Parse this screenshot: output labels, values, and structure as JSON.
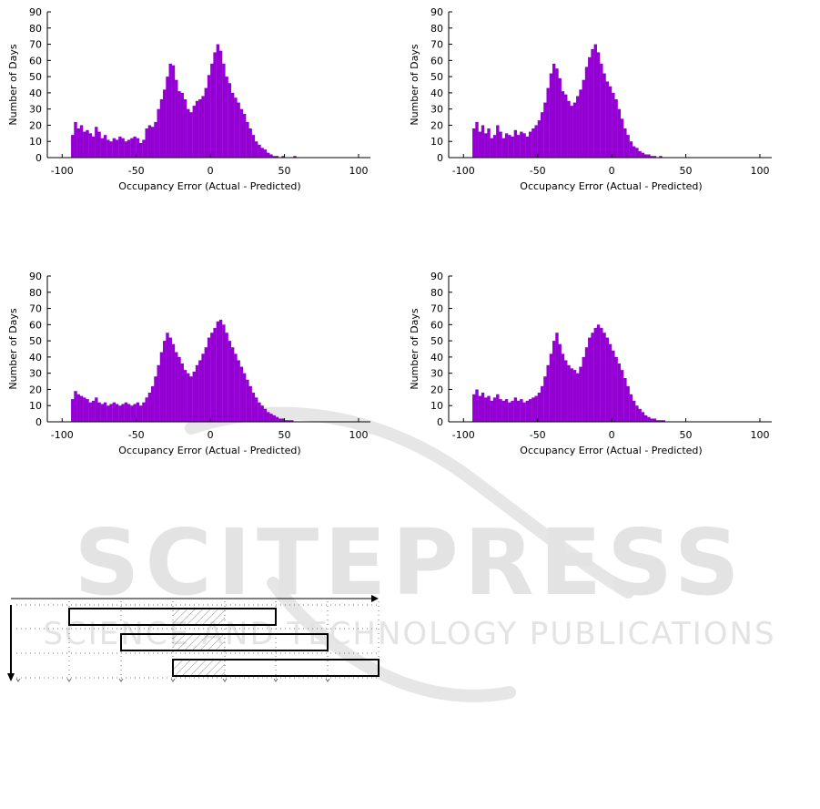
{
  "colors": {
    "bar": "#9400d3",
    "axis": "#000000",
    "watermark": "#e3e3e3",
    "hatch": "#888888"
  },
  "watermark": {
    "title": "SCITEPRESS",
    "subtitle": "SCIENCE AND TECHNOLOGY PUBLICATIONS"
  },
  "chart_data": [
    {
      "type": "bar",
      "xlabel": "Occupancy Error (Actual - Predicted)",
      "ylabel": "Number of Days",
      "xlim": [
        -110,
        108
      ],
      "ylim": [
        0,
        90
      ],
      "xticks": [
        -100,
        -50,
        0,
        50,
        100
      ],
      "yticks": [
        0,
        10,
        20,
        30,
        40,
        50,
        60,
        70,
        80,
        90
      ],
      "x": [
        -93,
        -91,
        -89,
        -87,
        -85,
        -83,
        -81,
        -79,
        -77,
        -75,
        -73,
        -71,
        -69,
        -67,
        -65,
        -63,
        -61,
        -59,
        -57,
        -55,
        -53,
        -51,
        -49,
        -47,
        -45,
        -43,
        -41,
        -39,
        -37,
        -35,
        -33,
        -31,
        -29,
        -27,
        -25,
        -23,
        -21,
        -19,
        -17,
        -15,
        -13,
        -11,
        -9,
        -7,
        -5,
        -3,
        -1,
        1,
        3,
        5,
        7,
        9,
        11,
        13,
        15,
        17,
        19,
        21,
        23,
        25,
        27,
        29,
        31,
        33,
        35,
        37,
        39,
        41,
        43,
        45,
        47,
        49,
        51,
        53,
        55,
        57,
        59,
        61,
        63,
        65,
        67,
        69,
        71,
        73,
        75,
        77,
        79,
        81,
        83,
        85,
        87,
        89,
        91,
        93,
        95,
        97,
        99
      ],
      "values": [
        14,
        22,
        18,
        20,
        16,
        17,
        15,
        13,
        19,
        16,
        12,
        14,
        11,
        10,
        12,
        11,
        13,
        12,
        10,
        11,
        12,
        13,
        12,
        9,
        11,
        18,
        20,
        19,
        22,
        30,
        36,
        42,
        50,
        58,
        57,
        48,
        41,
        40,
        36,
        30,
        28,
        32,
        35,
        36,
        38,
        43,
        51,
        58,
        65,
        70,
        66,
        58,
        50,
        46,
        40,
        37,
        34,
        30,
        27,
        22,
        18,
        14,
        10,
        8,
        6,
        5,
        3,
        2,
        1,
        1,
        0,
        1,
        0,
        0,
        0,
        1,
        0,
        0,
        0,
        0,
        0,
        0,
        0,
        0,
        0,
        0,
        0,
        0,
        0,
        0,
        0,
        0,
        0,
        0,
        0,
        0,
        0
      ]
    },
    {
      "type": "bar",
      "xlabel": "Occupancy Error (Actual - Predicted)",
      "ylabel": "Number of Days",
      "xlim": [
        -110,
        108
      ],
      "ylim": [
        0,
        90
      ],
      "xticks": [
        -100,
        -50,
        0,
        50,
        100
      ],
      "yticks": [
        0,
        10,
        20,
        30,
        40,
        50,
        60,
        70,
        80,
        90
      ],
      "x": [
        -93,
        -91,
        -89,
        -87,
        -85,
        -83,
        -81,
        -79,
        -77,
        -75,
        -73,
        -71,
        -69,
        -67,
        -65,
        -63,
        -61,
        -59,
        -57,
        -55,
        -53,
        -51,
        -49,
        -47,
        -45,
        -43,
        -41,
        -39,
        -37,
        -35,
        -33,
        -31,
        -29,
        -27,
        -25,
        -23,
        -21,
        -19,
        -17,
        -15,
        -13,
        -11,
        -9,
        -7,
        -5,
        -3,
        -1,
        1,
        3,
        5,
        7,
        9,
        11,
        13,
        15,
        17,
        19,
        21,
        23,
        25,
        27,
        29,
        31,
        33,
        35,
        37,
        39,
        41,
        43,
        45,
        47,
        49,
        51,
        53,
        55,
        57,
        59,
        61,
        63,
        65,
        67,
        69,
        71,
        73,
        75,
        77,
        79,
        81,
        83,
        85,
        87,
        89,
        91,
        93,
        95,
        97,
        99
      ],
      "values": [
        18,
        22,
        16,
        20,
        15,
        18,
        12,
        14,
        20,
        16,
        12,
        15,
        14,
        13,
        17,
        14,
        16,
        15,
        13,
        16,
        18,
        20,
        23,
        28,
        34,
        43,
        52,
        58,
        55,
        49,
        41,
        39,
        35,
        32,
        34,
        38,
        42,
        48,
        56,
        62,
        67,
        70,
        65,
        58,
        52,
        47,
        44,
        40,
        36,
        30,
        24,
        18,
        14,
        10,
        7,
        6,
        4,
        3,
        2,
        2,
        1,
        1,
        0,
        1,
        0,
        0,
        0,
        0,
        0,
        0,
        0,
        0,
        0,
        0,
        0,
        0,
        0,
        0,
        0,
        0,
        0,
        0,
        0,
        0,
        0,
        0,
        0,
        0,
        0,
        0,
        0,
        0,
        0,
        0,
        0,
        0,
        0
      ]
    },
    {
      "type": "bar",
      "xlabel": "Occupancy Error (Actual - Predicted)",
      "ylabel": "Number of Days",
      "xlim": [
        -110,
        108
      ],
      "ylim": [
        0,
        90
      ],
      "xticks": [
        -100,
        -50,
        0,
        50,
        100
      ],
      "yticks": [
        0,
        10,
        20,
        30,
        40,
        50,
        60,
        70,
        80,
        90
      ],
      "x": [
        -93,
        -91,
        -89,
        -87,
        -85,
        -83,
        -81,
        -79,
        -77,
        -75,
        -73,
        -71,
        -69,
        -67,
        -65,
        -63,
        -61,
        -59,
        -57,
        -55,
        -53,
        -51,
        -49,
        -47,
        -45,
        -43,
        -41,
        -39,
        -37,
        -35,
        -33,
        -31,
        -29,
        -27,
        -25,
        -23,
        -21,
        -19,
        -17,
        -15,
        -13,
        -11,
        -9,
        -7,
        -5,
        -3,
        -1,
        1,
        3,
        5,
        7,
        9,
        11,
        13,
        15,
        17,
        19,
        21,
        23,
        25,
        27,
        29,
        31,
        33,
        35,
        37,
        39,
        41,
        43,
        45,
        47,
        49,
        51,
        53,
        55,
        57,
        59,
        61,
        63,
        65,
        67,
        69,
        71,
        73,
        75,
        77,
        79,
        81,
        83,
        85,
        87,
        89,
        91,
        93,
        95,
        97,
        99
      ],
      "values": [
        14,
        19,
        17,
        16,
        15,
        14,
        12,
        13,
        15,
        12,
        11,
        12,
        10,
        11,
        12,
        11,
        10,
        11,
        12,
        11,
        10,
        11,
        12,
        10,
        12,
        15,
        18,
        22,
        28,
        35,
        43,
        50,
        55,
        52,
        48,
        43,
        40,
        36,
        32,
        30,
        28,
        31,
        35,
        38,
        42,
        46,
        52,
        55,
        58,
        62,
        63,
        60,
        55,
        50,
        46,
        42,
        38,
        34,
        30,
        26,
        22,
        18,
        15,
        12,
        10,
        8,
        6,
        5,
        4,
        3,
        2,
        2,
        1,
        1,
        1,
        0,
        0,
        0,
        0,
        0,
        0,
        0,
        0,
        0,
        0,
        0,
        0,
        0,
        0,
        0,
        0,
        0,
        0,
        0,
        0,
        0,
        0
      ]
    },
    {
      "type": "bar",
      "xlabel": "Occupancy Error (Actual - Predicted)",
      "ylabel": "Number of Days",
      "xlim": [
        -110,
        108
      ],
      "ylim": [
        0,
        90
      ],
      "xticks": [
        -100,
        -50,
        0,
        50,
        100
      ],
      "yticks": [
        0,
        10,
        20,
        30,
        40,
        50,
        60,
        70,
        80,
        90
      ],
      "x": [
        -93,
        -91,
        -89,
        -87,
        -85,
        -83,
        -81,
        -79,
        -77,
        -75,
        -73,
        -71,
        -69,
        -67,
        -65,
        -63,
        -61,
        -59,
        -57,
        -55,
        -53,
        -51,
        -49,
        -47,
        -45,
        -43,
        -41,
        -39,
        -37,
        -35,
        -33,
        -31,
        -29,
        -27,
        -25,
        -23,
        -21,
        -19,
        -17,
        -15,
        -13,
        -11,
        -9,
        -7,
        -5,
        -3,
        -1,
        1,
        3,
        5,
        7,
        9,
        11,
        13,
        15,
        17,
        19,
        21,
        23,
        25,
        27,
        29,
        31,
        33,
        35,
        37,
        39,
        41,
        43,
        45,
        47,
        49,
        51,
        53,
        55,
        57,
        59,
        61,
        63,
        65,
        67,
        69,
        71,
        73,
        75,
        77,
        79,
        81,
        83,
        85,
        87,
        89,
        91,
        93,
        95,
        97,
        99
      ],
      "values": [
        17,
        20,
        16,
        18,
        15,
        16,
        13,
        15,
        17,
        14,
        13,
        14,
        12,
        13,
        15,
        13,
        14,
        12,
        13,
        14,
        15,
        16,
        18,
        22,
        28,
        35,
        42,
        50,
        55,
        48,
        42,
        38,
        35,
        33,
        32,
        30,
        34,
        40,
        46,
        52,
        55,
        58,
        60,
        58,
        55,
        52,
        48,
        44,
        40,
        36,
        32,
        27,
        22,
        17,
        13,
        10,
        8,
        6,
        4,
        3,
        2,
        2,
        1,
        1,
        1,
        0,
        0,
        0,
        0,
        0,
        0,
        0,
        0,
        0,
        0,
        0,
        0,
        0,
        0,
        0,
        0,
        0,
        0,
        0,
        0,
        0,
        0,
        0,
        0,
        0,
        0,
        0,
        0,
        0,
        0,
        0,
        0
      ]
    }
  ]
}
